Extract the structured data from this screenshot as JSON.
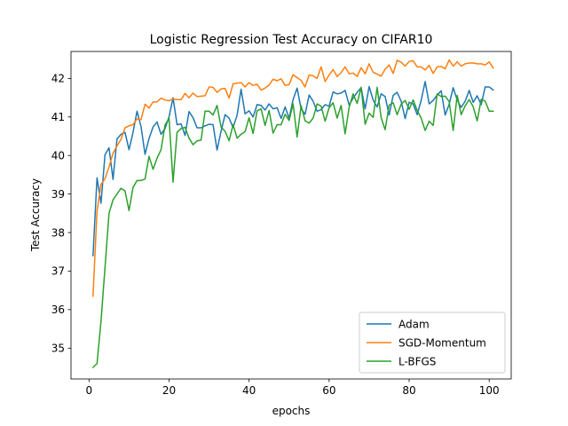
{
  "chart_data": {
    "type": "line",
    "title": "Logistic Regression Test Accuracy on CIFAR10",
    "xlabel": "epochs",
    "ylabel": "Test Accuracy",
    "xlim": [
      -4.5,
      105.5
    ],
    "ylim": [
      34.2,
      42.7
    ],
    "xticks": [
      0,
      20,
      40,
      60,
      80,
      100
    ],
    "yticks": [
      35,
      36,
      37,
      38,
      39,
      40,
      41,
      42
    ],
    "legend_position": "lower-right",
    "grid": false,
    "series": [
      {
        "name": "Adam",
        "color": "#1f77b4",
        "values": [
          37.4,
          39.42,
          38.76,
          40.02,
          40.2,
          39.38,
          40.43,
          40.55,
          40.6,
          40.15,
          40.6,
          41.15,
          40.75,
          40.03,
          40.44,
          40.74,
          40.87,
          40.55,
          40.7,
          41.0,
          41.5,
          40.8,
          40.82,
          40.52,
          41.14,
          40.98,
          40.72,
          40.72,
          40.77,
          40.81,
          40.8,
          40.14,
          40.63,
          41.06,
          40.97,
          40.73,
          41.04,
          41.72,
          41.08,
          41.16,
          41.0,
          41.32,
          41.3,
          41.18,
          41.34,
          41.21,
          41.24,
          40.96,
          41.26,
          40.97,
          41.45,
          41.75,
          41.21,
          41.07,
          41.57,
          41.41,
          41.15,
          41.19,
          41.32,
          41.28,
          41.65,
          41.6,
          41.62,
          41.69,
          41.31,
          41.49,
          41.64,
          41.76,
          41.21,
          41.79,
          41.44,
          41.26,
          41.6,
          41.53,
          41.05,
          41.56,
          41.64,
          41.41,
          40.96,
          41.38,
          41.34,
          41.06,
          41.43,
          41.92,
          41.34,
          41.43,
          41.57,
          41.68,
          41.05,
          41.33,
          41.76,
          41.44,
          41.25,
          41.41,
          41.69,
          41.38,
          41.55,
          41.32,
          41.78,
          41.78,
          41.7
        ]
      },
      {
        "name": "SGD-Momentum",
        "color": "#ff7f0e",
        "values": [
          36.35,
          38.55,
          39.25,
          39.4,
          39.7,
          40.06,
          40.25,
          40.42,
          40.72,
          40.77,
          40.8,
          40.95,
          40.93,
          41.33,
          41.23,
          41.39,
          41.39,
          41.49,
          41.44,
          41.42,
          41.47,
          41.45,
          41.45,
          41.61,
          41.5,
          41.62,
          41.53,
          41.54,
          41.55,
          41.78,
          41.77,
          41.64,
          41.73,
          41.74,
          41.49,
          41.86,
          41.88,
          41.89,
          41.78,
          41.89,
          41.82,
          41.85,
          41.7,
          41.75,
          41.83,
          41.98,
          41.94,
          41.99,
          41.82,
          41.84,
          42.1,
          42.02,
          41.95,
          41.78,
          42.09,
          42.07,
          42.0,
          42.3,
          41.92,
          42.09,
          42.23,
          42.05,
          42.15,
          42.3,
          42.12,
          42.14,
          42.05,
          42.28,
          42.12,
          42.38,
          42.16,
          42.11,
          42.06,
          42.24,
          42.35,
          42.13,
          42.47,
          42.42,
          42.32,
          42.44,
          42.46,
          42.3,
          42.3,
          42.22,
          42.34,
          42.13,
          42.3,
          42.31,
          42.25,
          42.48,
          42.32,
          42.43,
          42.32,
          42.38,
          42.4,
          42.4,
          42.38,
          42.38,
          42.35,
          42.43,
          42.27
        ]
      },
      {
        "name": "L-BFGS",
        "color": "#2ca02c",
        "values": [
          34.5,
          34.6,
          35.7,
          37.1,
          38.5,
          38.85,
          39.0,
          39.15,
          39.08,
          38.57,
          39.17,
          39.35,
          39.35,
          39.39,
          39.98,
          39.64,
          39.93,
          40.15,
          40.79,
          40.97,
          39.31,
          40.6,
          40.7,
          40.73,
          40.45,
          40.28,
          40.38,
          40.4,
          41.15,
          41.15,
          41.05,
          41.3,
          40.74,
          40.63,
          40.38,
          40.8,
          40.45,
          40.55,
          40.62,
          40.98,
          40.57,
          41.16,
          41.21,
          40.78,
          41.17,
          40.58,
          40.8,
          40.8,
          41.07,
          40.91,
          41.34,
          40.48,
          41.29,
          40.9,
          40.84,
          40.97,
          41.34,
          41.28,
          40.89,
          41.24,
          41.37,
          40.97,
          41.3,
          40.56,
          41.25,
          41.6,
          41.35,
          41.77,
          40.81,
          41.1,
          40.99,
          41.77,
          40.98,
          40.67,
          41.31,
          41.37,
          41.06,
          41.33,
          41.43,
          41.2,
          41.44,
          41.17,
          40.97,
          40.65,
          40.89,
          40.78,
          41.6,
          41.53,
          41.54,
          41.4,
          40.65,
          41.56,
          41.06,
          41.29,
          41.45,
          41.27,
          40.9,
          41.46,
          41.41,
          41.15,
          41.15
        ]
      }
    ]
  }
}
